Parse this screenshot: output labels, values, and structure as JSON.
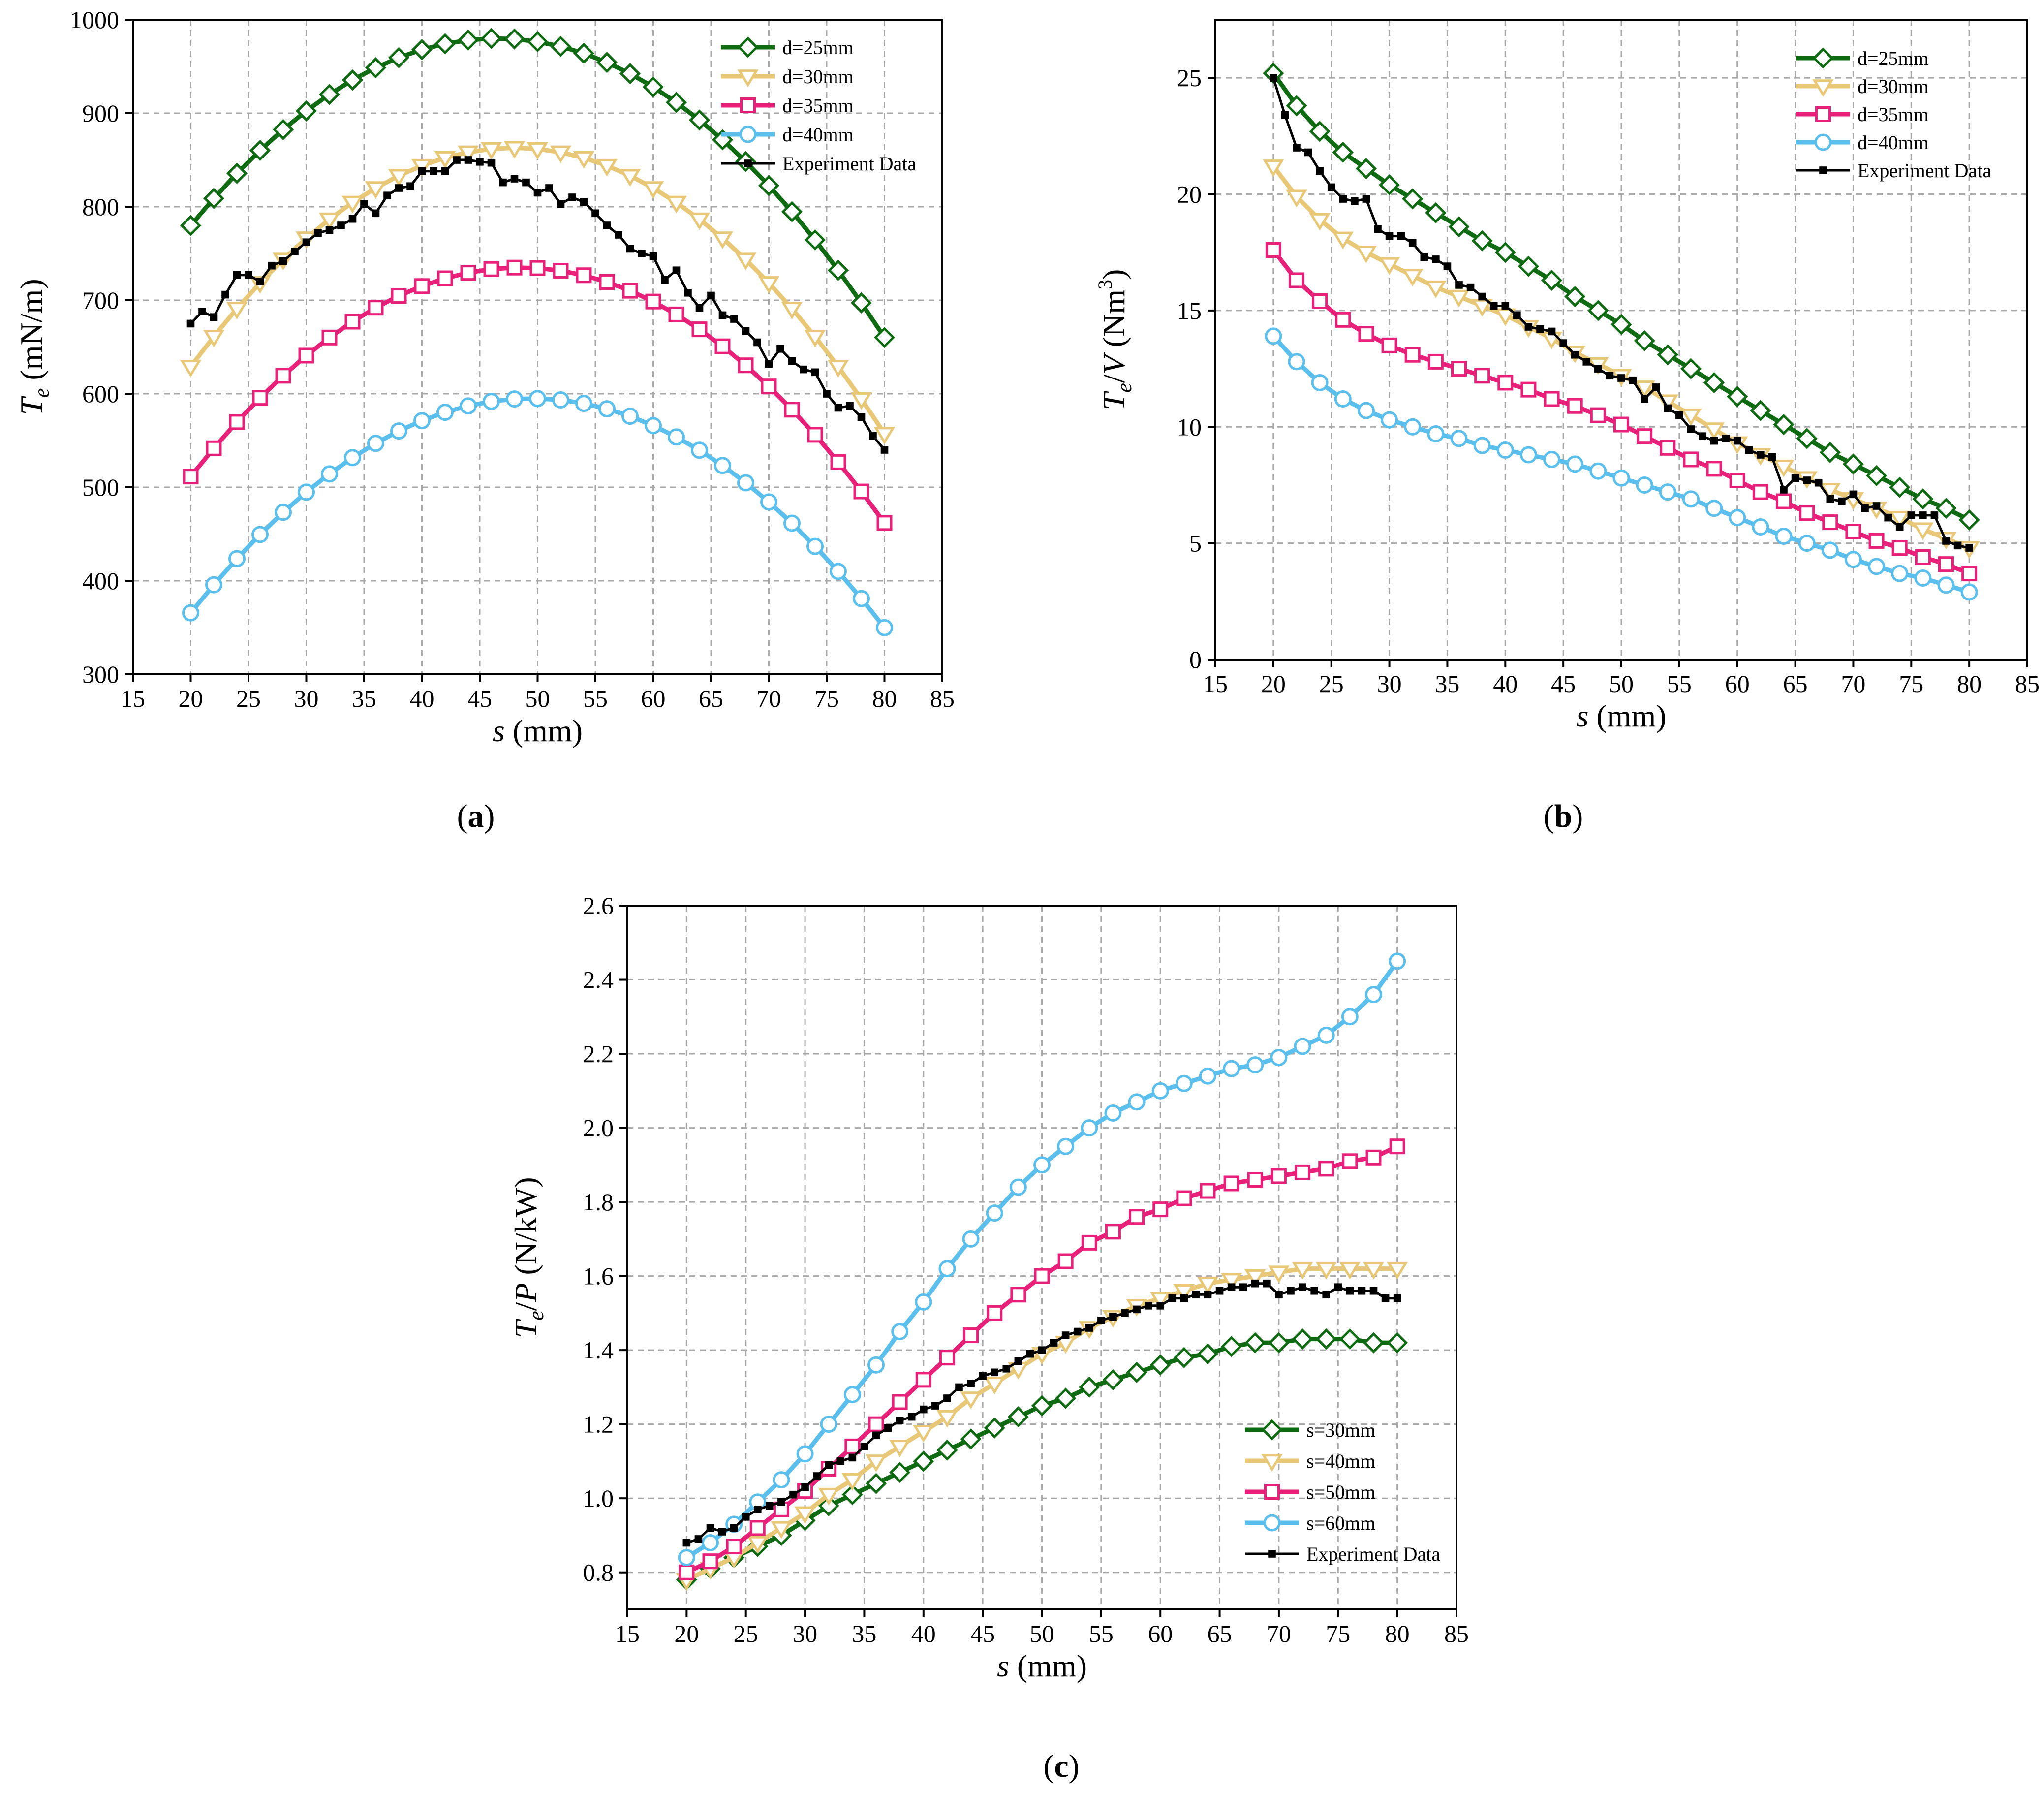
{
  "chart_data": [
    {
      "panel": "a",
      "type": "line",
      "panel_label": [
        "(",
        "a",
        ")"
      ],
      "xlabel": {
        "var": "s",
        "unit": " (mm)"
      },
      "ylabel": {
        "var": "T",
        "sub": "e",
        "unit": " (mN/m)"
      },
      "xlim": [
        15,
        85
      ],
      "ylim": [
        300,
        1000
      ],
      "xticks": [
        15,
        20,
        25,
        30,
        35,
        40,
        45,
        50,
        55,
        60,
        65,
        70,
        75,
        80,
        85
      ],
      "yticks": [
        300,
        400,
        500,
        600,
        700,
        800,
        900,
        1000
      ],
      "grid": true,
      "legend_position": "top-right",
      "series": [
        {
          "name": "d=25mm",
          "color": "#0f6b12",
          "marker": "diamond",
          "fn": "parabola",
          "params": [
            980,
            46.5,
            0.285
          ]
        },
        {
          "name": "d=30mm",
          "color": "#e8c877",
          "marker": "triangle-down",
          "fn": "parabola",
          "params": [
            863,
            48,
            0.2985
          ]
        },
        {
          "name": "d=35mm",
          "color": "#e8207a",
          "marker": "square",
          "fn": "parabola",
          "params": [
            735,
            48.5,
            0.2752
          ]
        },
        {
          "name": "d=40mm",
          "color": "#5bbfee",
          "marker": "circle",
          "fn": "parabola",
          "params": [
            595,
            49.5,
            0.2635
          ]
        },
        {
          "name": "Experiment Data",
          "color": "#000000",
          "marker": "filled-square",
          "step": 1,
          "x": [
            20,
            21,
            22,
            23,
            24,
            25,
            26,
            27,
            28,
            29,
            30,
            31,
            32,
            33,
            34,
            35,
            36,
            37,
            38,
            39,
            40,
            41,
            42,
            43,
            44,
            45,
            46,
            47,
            48,
            49,
            50,
            51,
            52,
            53,
            54,
            55,
            56,
            57,
            58,
            59,
            60,
            61,
            62,
            63,
            64,
            65,
            66,
            67,
            68,
            69,
            70,
            71,
            72,
            73,
            74,
            75,
            76,
            77,
            78,
            79,
            80
          ],
          "y": [
            675,
            688,
            682,
            706,
            727,
            727,
            720,
            737,
            742,
            752,
            762,
            772,
            775,
            780,
            787,
            803,
            793,
            812,
            820,
            822,
            838,
            838,
            838,
            850,
            850,
            848,
            847,
            826,
            830,
            826,
            815,
            820,
            803,
            810,
            805,
            793,
            780,
            770,
            755,
            750,
            747,
            722,
            732,
            708,
            692,
            705,
            684,
            680,
            667,
            655,
            632,
            648,
            635,
            626,
            623,
            600,
            585,
            587,
            575,
            555,
            540
          ]
        }
      ]
    },
    {
      "panel": "b",
      "type": "line",
      "panel_label": [
        "(",
        "b",
        ")"
      ],
      "xlabel": {
        "var": "s",
        "unit": " (mm)"
      },
      "ylabel": {
        "var": "T",
        "sub": "e",
        "mid": "/",
        "var2": "V",
        "unit": " (Nm",
        "sup": "3",
        "close": ")"
      },
      "xlim": [
        15,
        85
      ],
      "ylim": [
        0,
        27.5
      ],
      "xticks": [
        15,
        20,
        25,
        30,
        35,
        40,
        45,
        50,
        55,
        60,
        65,
        70,
        75,
        80,
        85
      ],
      "yticks": [
        0,
        5,
        10,
        15,
        20,
        25
      ],
      "grid": true,
      "legend_position": "top-right",
      "series": [
        {
          "name": "d=25mm",
          "color": "#0f6b12",
          "marker": "diamond",
          "x": [
            20,
            22,
            24,
            26,
            28,
            30,
            32,
            34,
            36,
            38,
            40,
            42,
            44,
            46,
            48,
            50,
            52,
            54,
            56,
            58,
            60,
            62,
            64,
            66,
            68,
            70,
            72,
            74,
            76,
            78,
            80
          ],
          "y": [
            25.2,
            23.8,
            22.7,
            21.8,
            21.1,
            20.4,
            19.8,
            19.2,
            18.6,
            18.0,
            17.5,
            16.9,
            16.3,
            15.6,
            15.0,
            14.4,
            13.7,
            13.1,
            12.5,
            11.9,
            11.3,
            10.7,
            10.1,
            9.5,
            8.9,
            8.4,
            7.9,
            7.4,
            6.9,
            6.5,
            6.0
          ]
        },
        {
          "name": "d=30mm",
          "color": "#e8c877",
          "marker": "triangle-down",
          "x": [
            20,
            22,
            24,
            26,
            28,
            30,
            32,
            34,
            36,
            38,
            40,
            42,
            44,
            46,
            48,
            50,
            52,
            54,
            56,
            58,
            60,
            62,
            64,
            66,
            68,
            70,
            72,
            74,
            76,
            78,
            80
          ],
          "y": [
            21.2,
            19.9,
            18.9,
            18.1,
            17.5,
            17.0,
            16.5,
            16.0,
            15.6,
            15.2,
            14.8,
            14.3,
            13.8,
            13.2,
            12.7,
            12.2,
            11.7,
            11.1,
            10.5,
            9.9,
            9.3,
            8.8,
            8.3,
            7.8,
            7.3,
            6.9,
            6.5,
            6.1,
            5.6,
            5.2,
            4.8
          ]
        },
        {
          "name": "d=35mm",
          "color": "#e8207a",
          "marker": "square",
          "x": [
            20,
            22,
            24,
            26,
            28,
            30,
            32,
            34,
            36,
            38,
            40,
            42,
            44,
            46,
            48,
            50,
            52,
            54,
            56,
            58,
            60,
            62,
            64,
            66,
            68,
            70,
            72,
            74,
            76,
            78,
            80
          ],
          "y": [
            17.6,
            16.3,
            15.4,
            14.6,
            14.0,
            13.5,
            13.1,
            12.8,
            12.5,
            12.2,
            11.9,
            11.6,
            11.2,
            10.9,
            10.5,
            10.1,
            9.6,
            9.1,
            8.6,
            8.2,
            7.7,
            7.2,
            6.8,
            6.3,
            5.9,
            5.5,
            5.1,
            4.8,
            4.4,
            4.1,
            3.7
          ]
        },
        {
          "name": "d=40mm",
          "color": "#5bbfee",
          "marker": "circle",
          "x": [
            20,
            22,
            24,
            26,
            28,
            30,
            32,
            34,
            36,
            38,
            40,
            42,
            44,
            46,
            48,
            50,
            52,
            54,
            56,
            58,
            60,
            62,
            64,
            66,
            68,
            70,
            72,
            74,
            76,
            78,
            80
          ],
          "y": [
            13.9,
            12.8,
            11.9,
            11.2,
            10.7,
            10.3,
            10.0,
            9.7,
            9.5,
            9.2,
            9.0,
            8.8,
            8.6,
            8.4,
            8.1,
            7.8,
            7.5,
            7.2,
            6.9,
            6.5,
            6.1,
            5.7,
            5.3,
            5.0,
            4.7,
            4.3,
            4.0,
            3.7,
            3.5,
            3.2,
            2.9
          ]
        },
        {
          "name": "Experiment Data",
          "color": "#000000",
          "marker": "filled-square",
          "step": 1,
          "x": [
            20,
            21,
            22,
            23,
            24,
            25,
            26,
            27,
            28,
            29,
            30,
            31,
            32,
            33,
            34,
            35,
            36,
            37,
            38,
            39,
            40,
            41,
            42,
            43,
            44,
            45,
            46,
            47,
            48,
            49,
            50,
            51,
            52,
            53,
            54,
            55,
            56,
            57,
            58,
            59,
            60,
            61,
            62,
            63,
            64,
            65,
            66,
            67,
            68,
            69,
            70,
            71,
            72,
            73,
            74,
            75,
            76,
            77,
            78,
            79,
            80
          ],
          "y": [
            25.0,
            23.4,
            22.0,
            21.8,
            21.0,
            20.3,
            19.8,
            19.7,
            19.8,
            18.5,
            18.2,
            18.2,
            17.9,
            17.3,
            17.2,
            16.9,
            16.1,
            16.0,
            15.6,
            15.2,
            15.2,
            14.8,
            14.3,
            14.2,
            14.1,
            13.6,
            13.1,
            12.8,
            12.5,
            12.2,
            12.1,
            12.0,
            11.2,
            11.7,
            10.8,
            10.5,
            9.9,
            9.6,
            9.4,
            9.5,
            9.4,
            9.0,
            8.8,
            8.7,
            7.3,
            7.8,
            7.7,
            7.6,
            6.9,
            6.8,
            7.1,
            6.5,
            6.6,
            6.1,
            5.7,
            6.2,
            6.2,
            6.2,
            5.1,
            4.9,
            4.8
          ]
        }
      ]
    },
    {
      "panel": "c",
      "type": "line",
      "panel_label": [
        "(",
        "c",
        ")"
      ],
      "xlabel": {
        "var": "s",
        "unit": " (mm)"
      },
      "ylabel": {
        "var": "T",
        "sub": "e",
        "mid": "/",
        "var2": "P",
        "unit": " (N/kW)"
      },
      "xlim": [
        15,
        85
      ],
      "ylim": [
        0.7,
        2.6
      ],
      "xticks": [
        15,
        20,
        25,
        30,
        35,
        40,
        45,
        50,
        55,
        60,
        65,
        70,
        75,
        80,
        85
      ],
      "yticks": [
        0.8,
        1.0,
        1.2,
        1.4,
        1.6,
        1.8,
        2.0,
        2.2,
        2.4,
        2.6
      ],
      "ytick_decimals": 1,
      "grid": true,
      "legend_position": "bottom-right",
      "series": [
        {
          "name": "s=30mm",
          "color": "#0f6b12",
          "marker": "diamond",
          "x": [
            20,
            22,
            24,
            26,
            28,
            30,
            32,
            34,
            36,
            38,
            40,
            42,
            44,
            46,
            48,
            50,
            52,
            54,
            56,
            58,
            60,
            62,
            64,
            66,
            68,
            70,
            72,
            74,
            76,
            78,
            80
          ],
          "y": [
            0.78,
            0.81,
            0.84,
            0.87,
            0.9,
            0.94,
            0.98,
            1.01,
            1.04,
            1.07,
            1.1,
            1.13,
            1.16,
            1.19,
            1.22,
            1.25,
            1.27,
            1.3,
            1.32,
            1.34,
            1.36,
            1.38,
            1.39,
            1.41,
            1.42,
            1.42,
            1.43,
            1.43,
            1.43,
            1.42,
            1.42
          ]
        },
        {
          "name": "s=40mm",
          "color": "#e8c877",
          "marker": "triangle-down",
          "x": [
            20,
            22,
            24,
            26,
            28,
            30,
            32,
            34,
            36,
            38,
            40,
            42,
            44,
            46,
            48,
            50,
            52,
            54,
            56,
            58,
            60,
            62,
            64,
            66,
            68,
            70,
            72,
            74,
            76,
            78,
            80
          ],
          "y": [
            0.78,
            0.81,
            0.84,
            0.88,
            0.92,
            0.96,
            1.01,
            1.05,
            1.1,
            1.14,
            1.18,
            1.22,
            1.27,
            1.31,
            1.35,
            1.39,
            1.42,
            1.46,
            1.49,
            1.52,
            1.54,
            1.56,
            1.58,
            1.59,
            1.6,
            1.61,
            1.62,
            1.62,
            1.62,
            1.62,
            1.62
          ]
        },
        {
          "name": "s=50mm",
          "color": "#e8207a",
          "marker": "square",
          "x": [
            20,
            22,
            24,
            26,
            28,
            30,
            32,
            34,
            36,
            38,
            40,
            42,
            44,
            46,
            48,
            50,
            52,
            54,
            56,
            58,
            60,
            62,
            64,
            66,
            68,
            70,
            72,
            74,
            76,
            78,
            80
          ],
          "y": [
            0.8,
            0.83,
            0.87,
            0.92,
            0.97,
            1.02,
            1.08,
            1.14,
            1.2,
            1.26,
            1.32,
            1.38,
            1.44,
            1.5,
            1.55,
            1.6,
            1.64,
            1.69,
            1.72,
            1.76,
            1.78,
            1.81,
            1.83,
            1.85,
            1.86,
            1.87,
            1.88,
            1.89,
            1.91,
            1.92,
            1.95
          ]
        },
        {
          "name": "s=60mm",
          "color": "#5bbfee",
          "marker": "circle",
          "x": [
            20,
            22,
            24,
            26,
            28,
            30,
            32,
            34,
            36,
            38,
            40,
            42,
            44,
            46,
            48,
            50,
            52,
            54,
            56,
            58,
            60,
            62,
            64,
            66,
            68,
            70,
            72,
            74,
            76,
            78,
            80
          ],
          "y": [
            0.84,
            0.88,
            0.93,
            0.99,
            1.05,
            1.12,
            1.2,
            1.28,
            1.36,
            1.45,
            1.53,
            1.62,
            1.7,
            1.77,
            1.84,
            1.9,
            1.95,
            2.0,
            2.04,
            2.07,
            2.1,
            2.12,
            2.14,
            2.16,
            2.17,
            2.19,
            2.22,
            2.25,
            2.3,
            2.36,
            2.45
          ]
        },
        {
          "name": "Experiment Data",
          "color": "#000000",
          "marker": "filled-square",
          "step": 1,
          "x": [
            20,
            21,
            22,
            23,
            24,
            25,
            26,
            27,
            28,
            29,
            30,
            31,
            32,
            33,
            34,
            35,
            36,
            37,
            38,
            39,
            40,
            41,
            42,
            43,
            44,
            45,
            46,
            47,
            48,
            49,
            50,
            51,
            52,
            53,
            54,
            55,
            56,
            57,
            58,
            59,
            60,
            61,
            62,
            63,
            64,
            65,
            66,
            67,
            68,
            69,
            70,
            71,
            72,
            73,
            74,
            75,
            76,
            77,
            78,
            79,
            80
          ],
          "y": [
            0.88,
            0.89,
            0.92,
            0.91,
            0.92,
            0.95,
            0.97,
            0.98,
            0.99,
            1.01,
            1.03,
            1.06,
            1.09,
            1.1,
            1.11,
            1.14,
            1.17,
            1.19,
            1.21,
            1.22,
            1.24,
            1.25,
            1.27,
            1.3,
            1.31,
            1.33,
            1.34,
            1.35,
            1.37,
            1.39,
            1.4,
            1.42,
            1.44,
            1.45,
            1.46,
            1.48,
            1.49,
            1.5,
            1.51,
            1.52,
            1.52,
            1.54,
            1.54,
            1.55,
            1.55,
            1.56,
            1.57,
            1.57,
            1.58,
            1.58,
            1.55,
            1.56,
            1.57,
            1.56,
            1.55,
            1.57,
            1.56,
            1.56,
            1.56,
            1.54,
            1.54
          ]
        }
      ]
    }
  ]
}
